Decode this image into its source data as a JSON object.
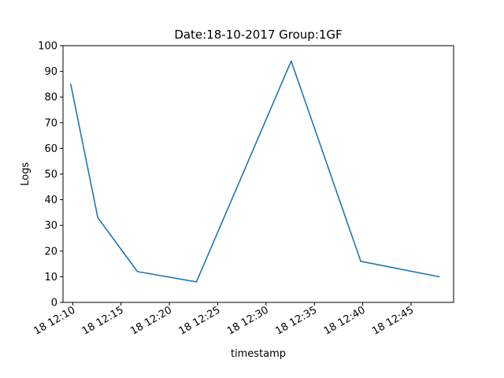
{
  "chart_data": {
    "type": "line",
    "title": "Date:18-10-2017  Group:1GF",
    "xlabel": "timestamp",
    "ylabel": "Logs",
    "ylim": [
      0,
      100
    ],
    "yticks": [
      0,
      10,
      20,
      30,
      40,
      50,
      60,
      70,
      80,
      90,
      100
    ],
    "xlim": [
      "2017-10-18 12:09:00",
      "2017-10-18 12:49:24"
    ],
    "xticks": [
      {
        "time": "2017-10-18 12:10",
        "label": "18 12:10"
      },
      {
        "time": "2017-10-18 12:15",
        "label": "18 12:15"
      },
      {
        "time": "2017-10-18 12:20",
        "label": "18 12:20"
      },
      {
        "time": "2017-10-18 12:25",
        "label": "18 12:25"
      },
      {
        "time": "2017-10-18 12:30",
        "label": "18 12:30"
      },
      {
        "time": "2017-10-18 12:35",
        "label": "18 12:35"
      },
      {
        "time": "2017-10-18 12:40",
        "label": "18 12:40"
      },
      {
        "time": "2017-10-18 12:45",
        "label": "18 12:45"
      }
    ],
    "grid": false,
    "series": [
      {
        "color": "#1f77b4",
        "points": [
          {
            "time": "2017-10-18 12:09:48",
            "value": 85
          },
          {
            "time": "2017-10-18 12:12:36",
            "value": 33
          },
          {
            "time": "2017-10-18 12:16:42",
            "value": 12
          },
          {
            "time": "2017-10-18 12:22:48",
            "value": 8
          },
          {
            "time": "2017-10-18 12:32:36",
            "value": 94
          },
          {
            "time": "2017-10-18 12:39:48",
            "value": 16
          },
          {
            "time": "2017-10-18 12:47:54",
            "value": 10
          }
        ]
      }
    ]
  }
}
